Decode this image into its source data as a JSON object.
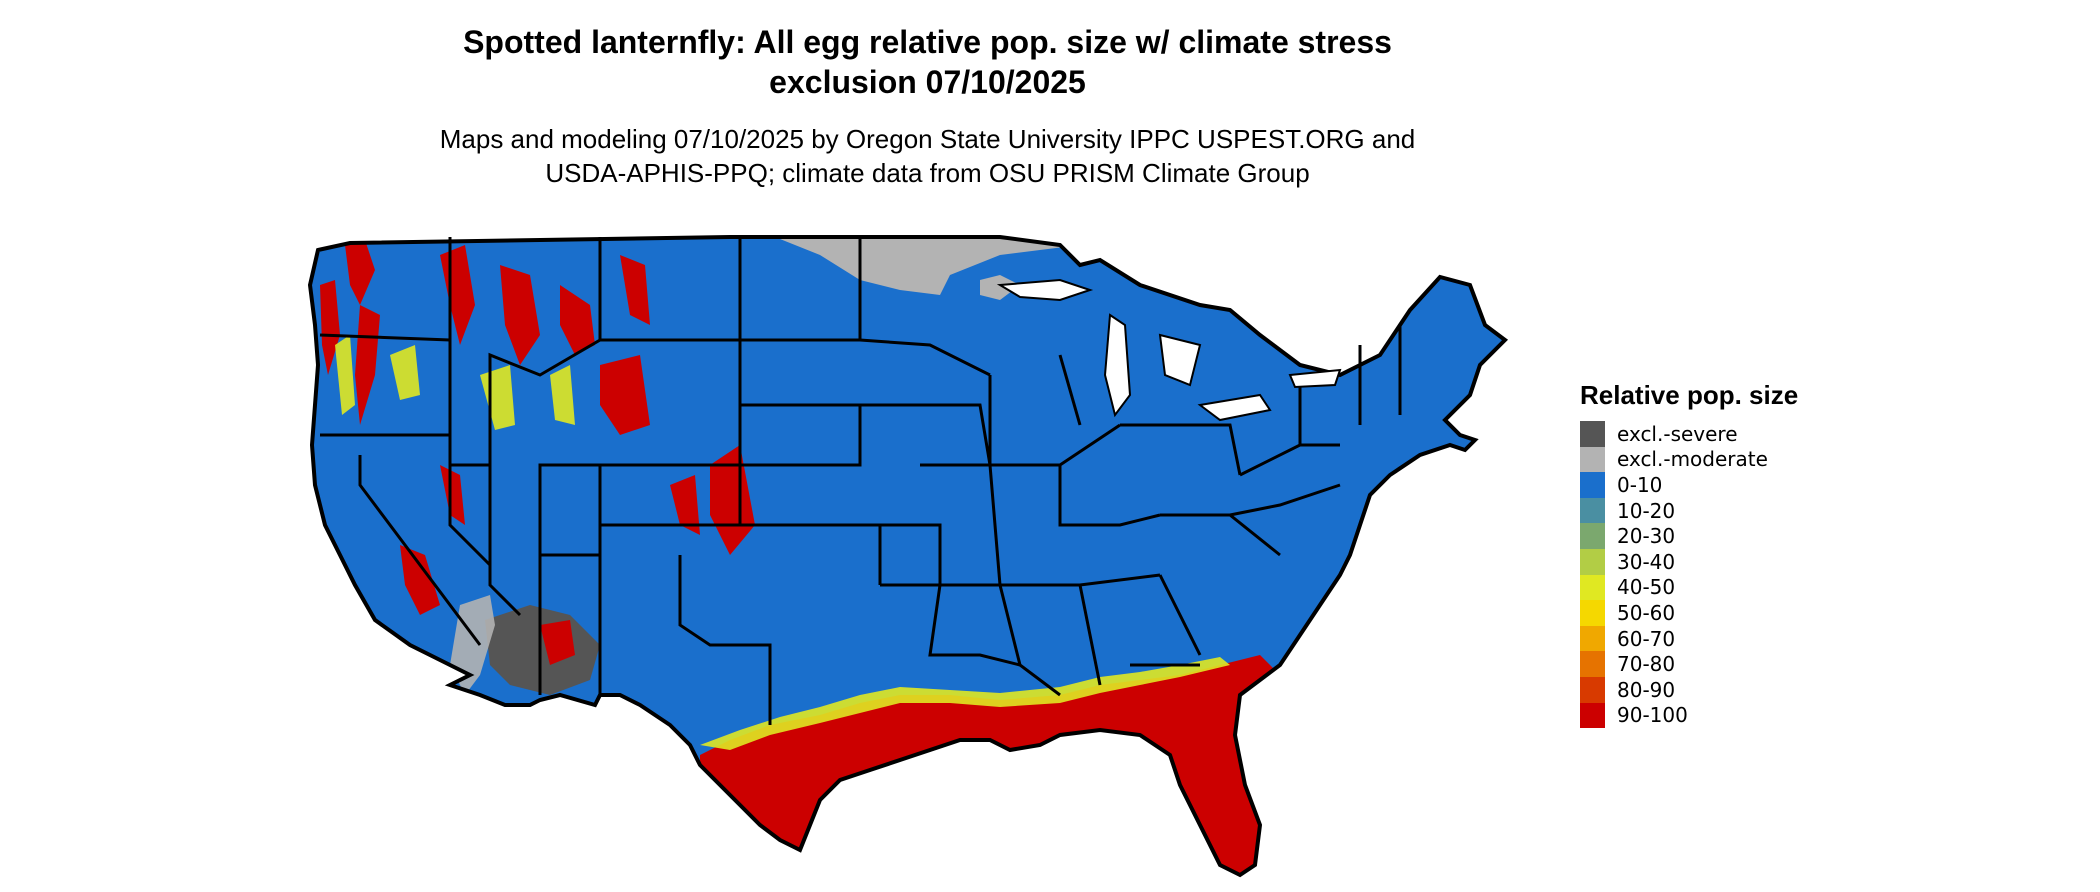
{
  "header": {
    "title_line1": "Spotted lanternfly: All egg relative pop. size w/ climate stress",
    "title_line2": "exclusion 07/10/2025",
    "subtitle_line1": "Maps and modeling 07/10/2025 by Oregon State University IPPC USPEST.ORG and",
    "subtitle_line2": "USDA-APHIS-PPQ; climate data from OSU PRISM Climate Group"
  },
  "legend": {
    "title": "Relative pop. size",
    "items": [
      {
        "label": "excl.-severe",
        "color": "#555555"
      },
      {
        "label": "excl.-moderate",
        "color": "#b3b3b3"
      },
      {
        "label": "0-10",
        "color": "#1a6fcc"
      },
      {
        "label": "10-20",
        "color": "#4a8fa2"
      },
      {
        "label": "20-30",
        "color": "#7ba86e"
      },
      {
        "label": "30-40",
        "color": "#b2cd45"
      },
      {
        "label": "40-50",
        "color": "#e0e822"
      },
      {
        "label": "50-60",
        "color": "#f5d800"
      },
      {
        "label": "60-70",
        "color": "#f0a800"
      },
      {
        "label": "70-80",
        "color": "#e67300"
      },
      {
        "label": "80-90",
        "color": "#d83a00"
      },
      {
        "label": "90-100",
        "color": "#cc0000"
      }
    ]
  },
  "map": {
    "region": "contiguous-united-states",
    "base_color": "#1a6fcc",
    "hotspot_color": "#cc0000",
    "border_color": "#000000"
  }
}
